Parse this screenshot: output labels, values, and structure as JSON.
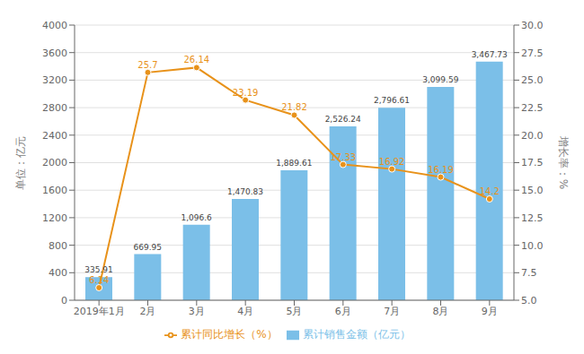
{
  "chart_data": {
    "type": "bar",
    "categories": [
      "2019年1月",
      "2月",
      "3月",
      "4月",
      "5月",
      "6月",
      "7月",
      "8月",
      "9月"
    ],
    "series": [
      {
        "name": "累计销售金额（亿元）",
        "type": "bar",
        "color": "#7bbfe8",
        "values": [
          335.91,
          669.95,
          1096.6,
          1470.83,
          1889.61,
          2526.24,
          2796.61,
          3099.59,
          3467.73
        ],
        "value_labels": [
          "335.91",
          "669.95",
          "1,096.6",
          "1,470.83",
          "1,889.61",
          "2,526.24",
          "2,796.61",
          "3,099.59",
          "3,467.73"
        ]
      },
      {
        "name": "累计同比增长（%）",
        "type": "line",
        "color": "#e8921a",
        "marker": "circle",
        "axis": "y2",
        "values": [
          6.14,
          25.7,
          26.14,
          23.19,
          21.82,
          17.33,
          16.92,
          16.19,
          14.2
        ]
      }
    ],
    "ylabel": "单位：亿元",
    "y2label": "增长率：%",
    "ylim": [
      0,
      4000
    ],
    "yticks": [
      0,
      400,
      800,
      1200,
      1600,
      2000,
      2400,
      2800,
      3200,
      3600,
      4000
    ],
    "y2lim": [
      5,
      30
    ],
    "y2ticks": [
      {
        "value": 5,
        "label": "5.0"
      },
      7.5,
      {
        "value": 10,
        "label": "10.0"
      },
      12.5,
      {
        "value": 15,
        "label": "15.0"
      },
      17.5,
      {
        "value": 20,
        "label": "20.0"
      },
      22.5,
      {
        "value": 25,
        "label": "25.0"
      },
      27.5,
      {
        "value": 30,
        "label": "30.0"
      }
    ],
    "grid": true,
    "legend": "bottom",
    "data_labels": true
  }
}
